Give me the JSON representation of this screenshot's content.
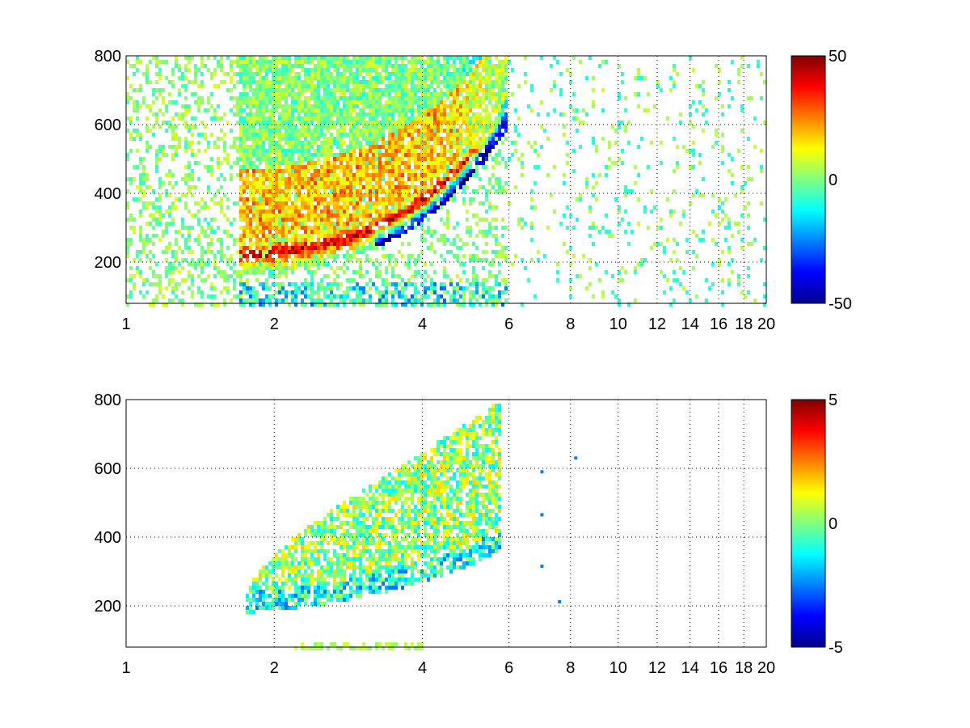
{
  "chart_data": [
    {
      "type": "heatmap",
      "title": "",
      "xlabel": "",
      "ylabel": "",
      "xscale": "log",
      "xlim": [
        1,
        20
      ],
      "ylim": [
        80,
        800
      ],
      "xticks": [
        1,
        2,
        4,
        6,
        8,
        10,
        12,
        14,
        16,
        18,
        20
      ],
      "xtick_labels": [
        "1",
        "2",
        "4",
        "6",
        "8",
        "10",
        "12",
        "14",
        "16",
        "18",
        "20"
      ],
      "yticks": [
        200,
        400,
        600,
        800
      ],
      "ytick_labels": [
        "200",
        "400",
        "600",
        "800"
      ],
      "grid": true,
      "colormap": "jet",
      "clim": [
        -50,
        50
      ],
      "colorbar_ticks": [
        -50,
        0,
        50
      ],
      "colorbar_labels": [
        "-50",
        "0",
        "50"
      ],
      "features": {
        "positive_ridge": {
          "x_start": 1.7,
          "x_end": 5.8,
          "y_start": 220,
          "y_end": 620,
          "value": 40
        },
        "negative_ridge": {
          "x_start": 3.2,
          "x_end": 5.8,
          "y_start": 250,
          "y_end": 600,
          "value": -45
        },
        "sparse_region": {
          "x_start": 6,
          "x_end": 20,
          "typical_values": [
            -8,
            5
          ]
        }
      }
    },
    {
      "type": "heatmap",
      "title": "",
      "xlabel": "",
      "ylabel": "",
      "xscale": "log",
      "xlim": [
        1,
        20
      ],
      "ylim": [
        80,
        800
      ],
      "xticks": [
        1,
        2,
        4,
        6,
        8,
        10,
        12,
        14,
        16,
        18,
        20
      ],
      "xtick_labels": [
        "1",
        "2",
        "4",
        "6",
        "8",
        "10",
        "12",
        "14",
        "16",
        "18",
        "20"
      ],
      "yticks": [
        200,
        400,
        600,
        800
      ],
      "ytick_labels": [
        "200",
        "400",
        "600",
        "800"
      ],
      "grid": true,
      "colormap": "jet",
      "clim": [
        -5,
        5
      ],
      "colorbar_ticks": [
        -5,
        0,
        5
      ],
      "colorbar_labels": [
        "-5",
        "0",
        "5"
      ],
      "features": {
        "main_region": {
          "x_start": 1.7,
          "x_end": 5.8,
          "y_start": 180,
          "y_end": 790,
          "typical_values": [
            -2,
            2
          ]
        },
        "low_band": {
          "x_start": 2.2,
          "x_end": 4.0,
          "y_start": 80,
          "y_end": 100,
          "value": 0.5
        },
        "isolated_points": [
          {
            "x": 7.0,
            "y": 590
          },
          {
            "x": 7.0,
            "y": 465
          },
          {
            "x": 7.0,
            "y": 315
          },
          {
            "x": 8.2,
            "y": 630
          },
          {
            "x": 7.6,
            "y": 212
          }
        ]
      }
    }
  ]
}
